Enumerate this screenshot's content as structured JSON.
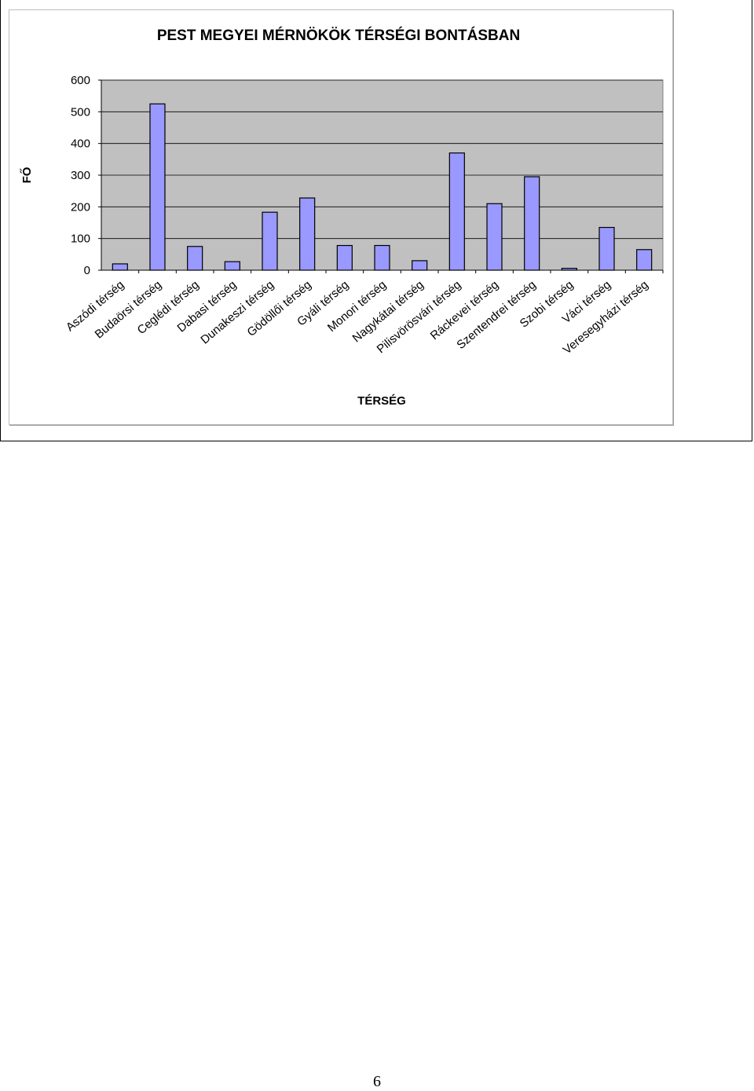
{
  "chart_data": {
    "type": "bar",
    "title": "PEST MEGYEI MÉRNÖKÖK TÉRSÉGI BONTÁSBAN",
    "xlabel": "TÉRSÉG",
    "ylabel": "FŐ",
    "ylim": [
      0,
      600
    ],
    "yticks": [
      0,
      100,
      200,
      300,
      400,
      500,
      600
    ],
    "grid": true,
    "legend": "none",
    "categories": [
      "Aszódi térség",
      "Budaörsi térség",
      "Ceglédi térség",
      "Dabasi térség",
      "Dunakeszi térség",
      "Gödöllői térség",
      "Gyáli térség",
      "Monori térség",
      "Nagykátai térség",
      "Pilisvörösvári térség",
      "Ráckevei térség",
      "Szentendrei térség",
      "Szobi térség",
      "Váci térség",
      "Veresegyházi térség"
    ],
    "values": [
      20,
      525,
      75,
      27,
      183,
      228,
      78,
      78,
      30,
      370,
      210,
      295,
      6,
      135,
      65
    ],
    "colors": {
      "bar_fill": "#9999ff",
      "bar_stroke": "#000000",
      "plot_background": "#c0c0c0",
      "gridline": "#000000"
    }
  },
  "page": {
    "number": "6"
  }
}
